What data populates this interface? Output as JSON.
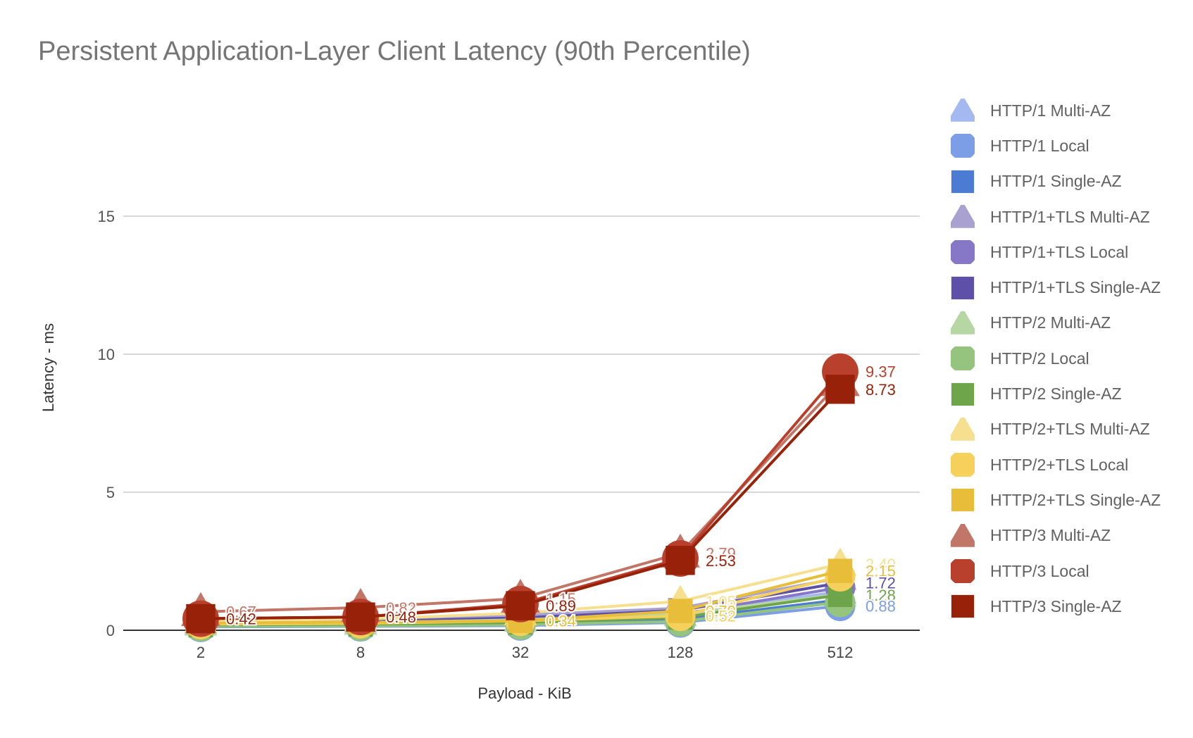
{
  "chart_data": {
    "type": "line",
    "title": "Persistent Application-Layer Client Latency (90th Percentile)",
    "xlabel": "Payload - KiB",
    "ylabel": "Latency - ms",
    "categories": [
      "2",
      "8",
      "32",
      "128",
      "512"
    ],
    "ylim": [
      0,
      15
    ],
    "yticks": [
      0,
      5,
      10,
      15
    ],
    "grid": true,
    "legend_position": "right",
    "series": [
      {
        "name": "HTTP/1 Multi-AZ",
        "marker": "triangle",
        "color": "#a4b9f0",
        "values": [
          0.25,
          0.28,
          0.4,
          0.6,
          1.4
        ]
      },
      {
        "name": "HTTP/1 Local",
        "marker": "circle",
        "color": "#7c9ee6",
        "values": [
          0.12,
          0.14,
          0.17,
          0.28,
          0.88
        ]
      },
      {
        "name": "HTTP/1 Single-AZ",
        "marker": "square",
        "color": "#4c7bd3",
        "values": [
          0.18,
          0.2,
          0.25,
          0.4,
          1.1
        ]
      },
      {
        "name": "HTTP/1+TLS Multi-AZ",
        "marker": "triangle",
        "color": "#a9a2d1",
        "values": [
          0.32,
          0.36,
          0.55,
          0.8,
          1.9
        ]
      },
      {
        "name": "HTTP/1+TLS Local",
        "marker": "circle",
        "color": "#8678c7",
        "values": [
          0.22,
          0.25,
          0.35,
          0.58,
          1.55
        ]
      },
      {
        "name": "HTTP/1+TLS Single-AZ",
        "marker": "square",
        "color": "#5e4fa8",
        "values": [
          0.28,
          0.31,
          0.45,
          0.72,
          1.72
        ]
      },
      {
        "name": "HTTP/2 Multi-AZ",
        "marker": "triangle",
        "color": "#b6d6a3",
        "values": [
          0.24,
          0.27,
          0.38,
          0.58,
          1.3
        ]
      },
      {
        "name": "HTTP/2 Local",
        "marker": "circle",
        "color": "#94c47e",
        "values": [
          0.14,
          0.16,
          0.2,
          0.32,
          1.02
        ]
      },
      {
        "name": "HTTP/2 Single-AZ",
        "marker": "square",
        "color": "#6ea54b",
        "values": [
          0.19,
          0.22,
          0.28,
          0.46,
          1.28
        ]
      },
      {
        "name": "HTTP/2+TLS Multi-AZ",
        "marker": "triangle",
        "color": "#f6df8f",
        "values": [
          0.35,
          0.4,
          0.62,
          1.05,
          2.4
        ]
      },
      {
        "name": "HTTP/2+TLS Local",
        "marker": "circle",
        "color": "#f5d15c",
        "values": [
          0.22,
          0.25,
          0.34,
          0.52,
          1.95
        ]
      },
      {
        "name": "HTTP/2+TLS Single-AZ",
        "marker": "square",
        "color": "#e8bd3a",
        "values": [
          0.26,
          0.29,
          0.34,
          0.7,
          2.15
        ]
      },
      {
        "name": "HTTP/3 Multi-AZ",
        "marker": "triangle",
        "color": "#c27667",
        "values": [
          0.67,
          0.82,
          1.15,
          2.79,
          9.0
        ]
      },
      {
        "name": "HTTP/3 Local",
        "marker": "circle",
        "color": "#b8402c",
        "values": [
          0.42,
          0.48,
          0.95,
          2.6,
          9.37
        ]
      },
      {
        "name": "HTTP/3 Single-AZ",
        "marker": "square",
        "color": "#982209",
        "values": [
          0.42,
          0.48,
          0.89,
          2.53,
          8.73
        ]
      }
    ],
    "data_labels": [
      {
        "series": "HTTP/3 Multi-AZ",
        "x": "2",
        "text": "0.67"
      },
      {
        "series": "HTTP/3 Single-AZ",
        "x": "2",
        "text": "0.42"
      },
      {
        "series": "HTTP/3 Multi-AZ",
        "x": "8",
        "text": "0.82"
      },
      {
        "series": "HTTP/3 Single-AZ",
        "x": "8",
        "text": "0.48"
      },
      {
        "series": "HTTP/3 Multi-AZ",
        "x": "32",
        "text": "1.15"
      },
      {
        "series": "HTTP/3 Single-AZ",
        "x": "32",
        "text": "0.89"
      },
      {
        "series": "HTTP/2+TLS Single-AZ",
        "x": "32",
        "text": "0.34"
      },
      {
        "series": "HTTP/3 Multi-AZ",
        "x": "128",
        "text": "2.79"
      },
      {
        "series": "HTTP/3 Single-AZ",
        "x": "128",
        "text": "2.53"
      },
      {
        "series": "HTTP/2+TLS Multi-AZ",
        "x": "128",
        "text": "1.05"
      },
      {
        "series": "HTTP/2+TLS Single-AZ",
        "x": "128",
        "text": "0.70"
      },
      {
        "series": "HTTP/2+TLS Local",
        "x": "128",
        "text": "0.52"
      },
      {
        "series": "HTTP/3 Local",
        "x": "512",
        "text": "9.37"
      },
      {
        "series": "HTTP/3 Single-AZ",
        "x": "512",
        "text": "8.73"
      },
      {
        "series": "HTTP/2+TLS Multi-AZ",
        "x": "512",
        "text": "2.40"
      },
      {
        "series": "HTTP/2+TLS Single-AZ",
        "x": "512",
        "text": "2.15"
      },
      {
        "series": "HTTP/1+TLS Single-AZ",
        "x": "512",
        "text": "1.72"
      },
      {
        "series": "HTTP/2 Single-AZ",
        "x": "512",
        "text": "1.28"
      },
      {
        "series": "HTTP/1 Local",
        "x": "512",
        "text": "0.88"
      }
    ]
  }
}
